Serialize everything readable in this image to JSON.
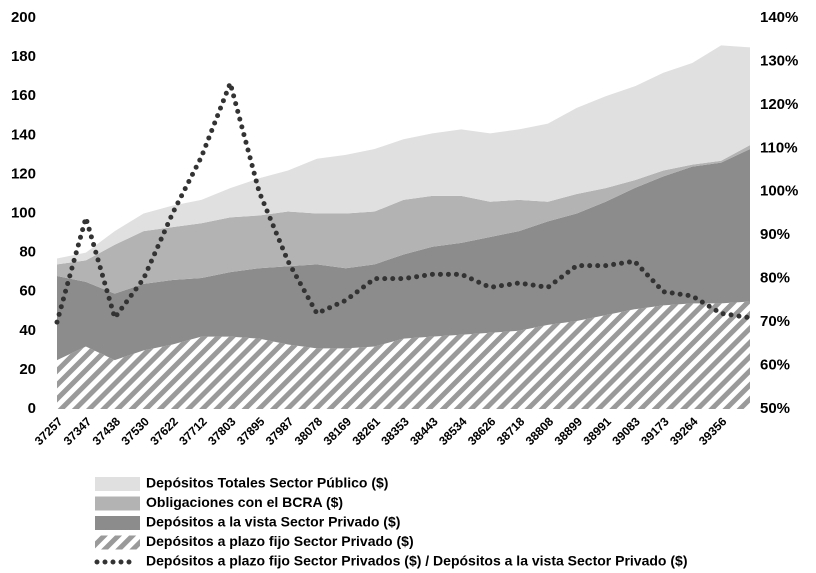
{
  "chart_data": {
    "type": "stacked_area_line",
    "categories": [
      "37257",
      "37347",
      "37438",
      "37530",
      "37622",
      "37712",
      "37803",
      "37895",
      "37987",
      "38078",
      "38169",
      "38261",
      "38353",
      "38443",
      "38534",
      "38626",
      "38718",
      "38808",
      "38899",
      "38991",
      "39083",
      "39173",
      "39264",
      "39356",
      null
    ],
    "series": [
      {
        "name": "Depósitos a plazo fijo Sector Privado ($)",
        "color": "#9a9a9a",
        "hatch": true,
        "values": [
          25,
          32,
          25,
          30,
          33,
          37,
          37,
          36,
          33,
          31,
          31,
          32,
          36,
          37,
          38,
          39,
          40,
          43,
          45,
          48,
          51,
          53,
          54,
          54,
          55
        ]
      },
      {
        "name": "Depósitos a la vista Sector Privado ($)",
        "color": "#8c8c8c",
        "values": [
          43,
          33,
          34,
          34,
          33,
          30,
          33,
          36,
          40,
          43,
          41,
          42,
          43,
          46,
          47,
          49,
          51,
          53,
          55,
          58,
          62,
          66,
          70,
          72,
          78
        ]
      },
      {
        "name": "Obligaciones con el BCRA ($)",
        "color": "#b3b3b3",
        "values": [
          6,
          11,
          25,
          27,
          27,
          28,
          28,
          27,
          28,
          26,
          28,
          27,
          28,
          26,
          24,
          18,
          16,
          10,
          10,
          7,
          4,
          3,
          1,
          1,
          2
        ]
      },
      {
        "name": "Depósitos Totales Sector Público ($)",
        "color": "#e0e0e0",
        "values": [
          3,
          4,
          7,
          9,
          11,
          12,
          15,
          19,
          21,
          28,
          30,
          32,
          31,
          32,
          34,
          35,
          36,
          40,
          44,
          47,
          48,
          50,
          52,
          59,
          50
        ]
      },
      {
        "name": "Depósitos a plazo fijo Sector Privados ($) / Depósitos a la vista Sector Privado ($)",
        "color": "#333333",
        "axis": "y2",
        "dotted": true,
        "values": [
          70,
          94,
          71,
          80,
          95,
          108,
          125,
          100,
          84,
          72,
          75,
          80,
          80,
          81,
          81,
          78,
          79,
          78,
          83,
          83,
          84,
          77,
          76,
          72,
          71
        ]
      }
    ],
    "ylim": [
      0,
      200
    ],
    "yticks": [
      0,
      20,
      40,
      60,
      80,
      100,
      120,
      140,
      160,
      180,
      200
    ],
    "y2lim": [
      50,
      140
    ],
    "y2ticks": [
      {
        "value": 50,
        "label": "50%"
      },
      {
        "value": 60,
        "label": "60%"
      },
      {
        "value": 70,
        "label": "70%"
      },
      {
        "value": 80,
        "label": "80%"
      },
      {
        "value": 90,
        "label": "90%"
      },
      {
        "value": 100,
        "label": "100%"
      },
      {
        "value": 110,
        "label": "110%"
      },
      {
        "value": 120,
        "label": "120%"
      },
      {
        "value": 130,
        "label": "130%"
      },
      {
        "value": 140,
        "label": "140%"
      }
    ],
    "legend": "bottom",
    "legend_order": [
      3,
      2,
      1,
      0,
      4
    ]
  }
}
